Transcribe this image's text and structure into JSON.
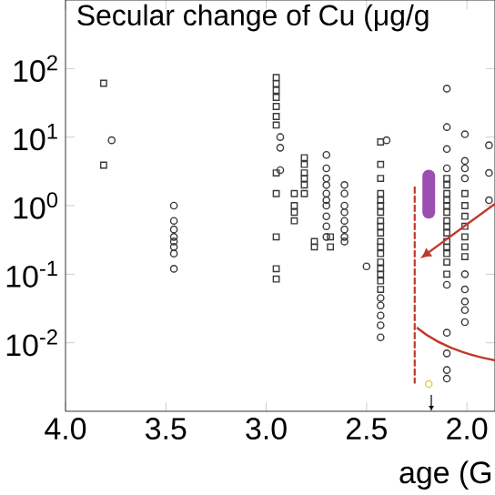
{
  "chart_data": {
    "type": "scatter",
    "title": "Secular change of Cu (μg/g",
    "xlabel": "age (G",
    "log": "y",
    "xlim": [
      4.0,
      1.86
    ],
    "ylim": [
      0.001,
      1000
    ],
    "xticks": [
      {
        "value": 4.0,
        "label": "4.0"
      },
      {
        "value": 3.5,
        "label": "3.5"
      },
      {
        "value": 3.0,
        "label": "3.0"
      },
      {
        "value": 2.5,
        "label": "2.5"
      },
      {
        "value": 2.0,
        "label": "2.0"
      }
    ],
    "yticks": [
      {
        "value": 0.01,
        "label": "10$^{-2}$"
      },
      {
        "value": 0.1,
        "label": "10$^{-1}$"
      },
      {
        "value": 1,
        "label": "10$^{0}$"
      },
      {
        "value": 10,
        "label": "10$^{1}$"
      },
      {
        "value": 100,
        "label": "10$^{2}$"
      }
    ],
    "series": [
      {
        "marker": "square",
        "color": "#3a3a3a",
        "x": [
          3.81,
          3.81,
          2.95,
          2.95,
          2.95,
          2.95,
          2.95,
          2.95,
          2.95,
          2.95,
          2.95,
          2.95,
          2.95,
          2.95,
          2.81,
          2.81,
          2.81,
          2.81,
          2.81,
          2.81,
          2.86,
          2.86,
          2.86,
          2.86,
          2.76,
          2.76,
          2.68,
          2.68,
          2.43,
          2.43,
          2.43,
          2.43,
          2.43,
          2.43,
          2.43,
          2.43,
          2.43,
          2.43,
          2.43,
          2.43,
          2.43,
          2.43,
          2.43,
          2.43,
          2.43,
          2.43,
          2.1,
          2.1,
          2.1,
          2.1,
          2.1,
          2.1,
          2.1,
          2.1,
          2.1,
          2.1,
          2.1,
          2.1,
          2.1,
          2.1,
          2.01,
          2.01,
          2.01,
          2.01,
          2.01,
          2.01,
          2.01
        ],
        "values": [
          61,
          3.9,
          74,
          60,
          48,
          38,
          28,
          20,
          15,
          3,
          1.5,
          0.35,
          0.12,
          0.085,
          5,
          4,
          3,
          2.5,
          2,
          1.5,
          1.5,
          1,
          0.8,
          0.6,
          0.3,
          0.25,
          0.25,
          0.35,
          8.5,
          4,
          2.5,
          1.5,
          1.2,
          1,
          0.8,
          0.6,
          0.5,
          0.4,
          0.3,
          0.25,
          0.2,
          0.15,
          0.12,
          0.1,
          0.08,
          0.06,
          2.5,
          2,
          1.5,
          1.2,
          1,
          0.8,
          0.6,
          0.5,
          0.4,
          0.3,
          0.25,
          0.2,
          0.15,
          0.1,
          1.5,
          1,
          0.7,
          0.5,
          0.35,
          0.25,
          0.18
        ]
      },
      {
        "marker": "circle",
        "color": "#3a3a3a",
        "x": [
          3.77,
          3.46,
          3.46,
          3.46,
          3.46,
          3.46,
          3.46,
          3.46,
          3.46,
          2.93,
          2.93,
          2.93,
          2.7,
          2.7,
          2.7,
          2.7,
          2.7,
          2.7,
          2.7,
          2.7,
          2.7,
          2.7,
          2.61,
          2.61,
          2.61,
          2.61,
          2.61,
          2.61,
          2.61,
          2.61,
          2.5,
          2.4,
          2.43,
          2.43,
          2.43,
          2.43,
          2.43,
          2.1,
          2.1,
          2.1,
          2.1,
          2.1,
          2.1,
          2.1,
          2.1,
          2.1,
          2.01,
          2.01,
          2.01,
          2.01,
          2.01,
          2.01,
          2.01,
          2.01,
          2.01,
          1.89,
          1.89,
          1.89
        ],
        "values": [
          9,
          1,
          0.6,
          0.45,
          0.35,
          0.3,
          0.25,
          0.2,
          0.12,
          10,
          7,
          3.3,
          5.5,
          3.5,
          2.5,
          2,
          1.5,
          1.2,
          1,
          0.7,
          0.5,
          0.35,
          2,
          1.5,
          1,
          0.8,
          0.6,
          0.45,
          0.35,
          0.3,
          0.13,
          9,
          0.045,
          0.035,
          0.025,
          0.018,
          0.012,
          51,
          14,
          6.7,
          3.5,
          0.07,
          0.014,
          0.007,
          0.004,
          0.003,
          11,
          4.5,
          3.5,
          2.5,
          0.1,
          0.06,
          0.04,
          0.03,
          0.02,
          7.6,
          3,
          1.2
        ]
      },
      {
        "type": "line",
        "color": "#9b4fb0",
        "x": [
          2.19,
          2.19
        ],
        "values": [
          2.7,
          0.8
        ]
      },
      {
        "type": "line",
        "line_style": "dashed",
        "color": "#c0392b",
        "x": [
          2.26,
          2.26
        ],
        "values": [
          1.85,
          0.0026
        ]
      },
      {
        "marker": "circle",
        "color": "#e0cf40",
        "x": [
          2.19
        ],
        "values": [
          0.0025
        ]
      }
    ]
  }
}
